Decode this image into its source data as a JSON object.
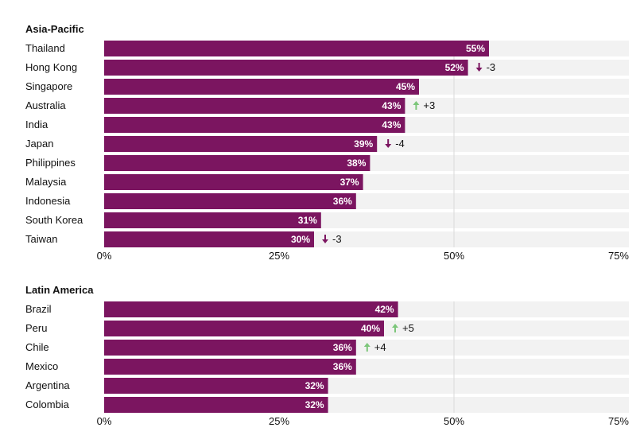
{
  "chart_data": [
    {
      "type": "bar",
      "orientation": "horizontal",
      "title": "Asia-Pacific",
      "categories": [
        "Thailand",
        "Hong Kong",
        "Singapore",
        "Australia",
        "India",
        "Japan",
        "Philippines",
        "Malaysia",
        "Indonesia",
        "South Korea",
        "Taiwan"
      ],
      "values": [
        55,
        52,
        45,
        43,
        43,
        39,
        38,
        37,
        36,
        31,
        30
      ],
      "value_labels": [
        "55%",
        "52%",
        "45%",
        "43%",
        "43%",
        "39%",
        "38%",
        "37%",
        "36%",
        "31%",
        "30%"
      ],
      "changes": [
        {
          "category": "Hong Kong",
          "direction": "down",
          "label": "-3"
        },
        {
          "category": "Australia",
          "direction": "up",
          "label": "+3"
        },
        {
          "category": "Japan",
          "direction": "down",
          "label": "-4"
        },
        {
          "category": "Taiwan",
          "direction": "down",
          "label": "-3"
        }
      ],
      "xlim": [
        0,
        75
      ],
      "ticks": [
        0,
        25,
        50,
        75
      ],
      "tick_labels": [
        "0%",
        "25%",
        "50%",
        "75%"
      ],
      "gridline_at": 50
    },
    {
      "type": "bar",
      "orientation": "horizontal",
      "title": "Latin America",
      "categories": [
        "Brazil",
        "Peru",
        "Chile",
        "Mexico",
        "Argentina",
        "Colombia"
      ],
      "values": [
        42,
        40,
        36,
        36,
        32,
        32
      ],
      "value_labels": [
        "42%",
        "40%",
        "36%",
        "36%",
        "32%",
        "32%"
      ],
      "changes": [
        {
          "category": "Peru",
          "direction": "up",
          "label": "+5"
        },
        {
          "category": "Chile",
          "direction": "up",
          "label": "+4"
        }
      ],
      "xlim": [
        0,
        75
      ],
      "ticks": [
        0,
        25,
        50,
        75
      ],
      "tick_labels": [
        "0%",
        "25%",
        "50%",
        "75%"
      ],
      "gridline_at": 50
    }
  ],
  "colors": {
    "bar": "#7b1560",
    "track": "#f2f2f2",
    "gridline": "#d9d9d9",
    "up_arrow": "#7cc67a",
    "down_arrow": "#7b1560",
    "text": "#111111",
    "bar_text": "#ffffff"
  },
  "icons": {
    "up": "arrow-up-icon",
    "down": "arrow-down-icon"
  }
}
